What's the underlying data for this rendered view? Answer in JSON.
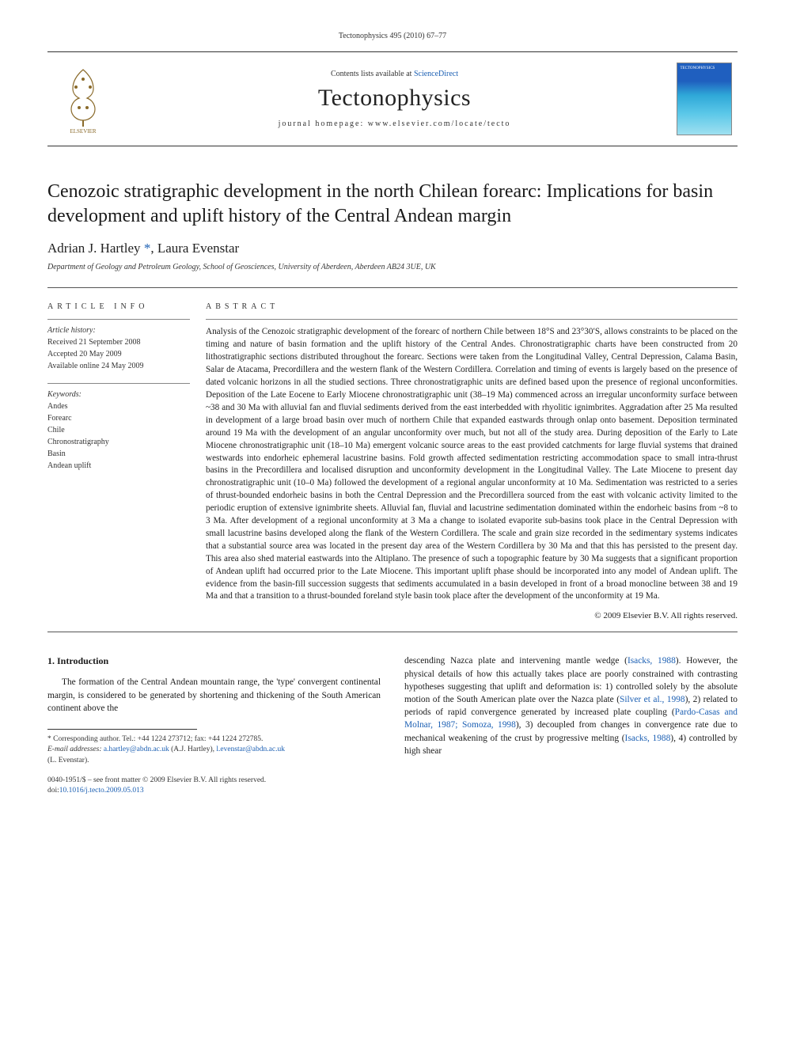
{
  "running_head": "Tectonophysics 495 (2010) 67–77",
  "header": {
    "contents_prefix": "Contents lists available at ",
    "contents_link": "ScienceDirect",
    "journal": "Tectonophysics",
    "homepage": "journal homepage: www.elsevier.com/locate/tecto",
    "cover_label": "TECTONOPHYSICS"
  },
  "article": {
    "title": "Cenozoic stratigraphic development in the north Chilean forearc: Implications for basin development and uplift history of the Central Andean margin",
    "authors_html": "Adrian J. Hartley <span class='corr-star'>*</span>, Laura Evenstar",
    "affiliation": "Department of Geology and Petroleum Geology, School of Geosciences, University of Aberdeen, Aberdeen AB24 3UE, UK"
  },
  "info": {
    "label": "ARTICLE INFO",
    "history_label": "Article history:",
    "received": "Received 21 September 2008",
    "accepted": "Accepted 20 May 2009",
    "online": "Available online 24 May 2009",
    "kw_label": "Keywords:",
    "keywords": [
      "Andes",
      "Forearc",
      "Chile",
      "Chronostratigraphy",
      "Basin",
      "Andean uplift"
    ]
  },
  "abstract": {
    "label": "ABSTRACT",
    "text": "Analysis of the Cenozoic stratigraphic development of the forearc of northern Chile between 18°S and 23°30′S, allows constraints to be placed on the timing and nature of basin formation and the uplift history of the Central Andes. Chronostratigraphic charts have been constructed from 20 lithostratigraphic sections distributed throughout the forearc. Sections were taken from the Longitudinal Valley, Central Depression, Calama Basin, Salar de Atacama, Precordillera and the western flank of the Western Cordillera. Correlation and timing of events is largely based on the presence of dated volcanic horizons in all the studied sections. Three chronostratigraphic units are defined based upon the presence of regional unconformities. Deposition of the Late Eocene to Early Miocene chronostratigraphic unit (38–19 Ma) commenced across an irregular unconformity surface between ~38 and 30 Ma with alluvial fan and fluvial sediments derived from the east interbedded with rhyolitic ignimbrites. Aggradation after 25 Ma resulted in development of a large broad basin over much of northern Chile that expanded eastwards through onlap onto basement. Deposition terminated around 19 Ma with the development of an angular unconformity over much, but not all of the study area. During deposition of the Early to Late Miocene chronostratigraphic unit (18–10 Ma) emergent volcanic source areas to the east provided catchments for large fluvial systems that drained westwards into endorheic ephemeral lacustrine basins. Fold growth affected sedimentation restricting accommodation space to small intra-thrust basins in the Precordillera and localised disruption and unconformity development in the Longitudinal Valley. The Late Miocene to present day chronostratigraphic unit (10–0 Ma) followed the development of a regional angular unconformity at 10 Ma. Sedimentation was restricted to a series of thrust-bounded endorheic basins in both the Central Depression and the Precordillera sourced from the east with volcanic activity limited to the periodic eruption of extensive ignimbrite sheets. Alluvial fan, fluvial and lacustrine sedimentation dominated within the endorheic basins from ~8 to 3 Ma. After development of a regional unconformity at 3 Ma a change to isolated evaporite sub-basins took place in the Central Depression with small lacustrine basins developed along the flank of the Western Cordillera. The scale and grain size recorded in the sedimentary systems indicates that a substantial source area was located in the present day area of the Western Cordillera by 30 Ma and that this has persisted to the present day. This area also shed material eastwards into the Altiplano. The presence of such a topographic feature by 30 Ma suggests that a significant proportion of Andean uplift had occurred prior to the Late Miocene. This important uplift phase should be incorporated into any model of Andean uplift. The evidence from the basin-fill succession suggests that sediments accumulated in a basin developed in front of a broad monocline between 38 and 19 Ma and that a transition to a thrust-bounded foreland style basin took place after the development of the unconformity at 19 Ma.",
    "copyright": "© 2009 Elsevier B.V. All rights reserved."
  },
  "body": {
    "section_head": "1. Introduction",
    "col1_p1": "The formation of the Central Andean mountain range, the 'type' convergent continental margin, is considered to be generated by shortening and thickening of the South American continent above the",
    "col2_p1_a": "descending Nazca plate and intervening mantle wedge (",
    "col2_ref1": "Isacks, 1988",
    "col2_p1_b": "). However, the physical details of how this actually takes place are poorly constrained with contrasting hypotheses suggesting that uplift and deformation is: 1) controlled solely by the absolute motion of the South American plate over the Nazca plate (",
    "col2_ref2": "Silver et al., 1998",
    "col2_p1_c": "), 2) related to periods of rapid convergence generated by increased plate coupling (",
    "col2_ref3": "Pardo-Casas and Molnar, 1987; Somoza, 1998",
    "col2_p1_d": "), 3) decoupled from changes in convergence rate due to mechanical weakening of the crust by progressive melting (",
    "col2_ref4": "Isacks, 1988",
    "col2_p1_e": "), 4) controlled by high shear"
  },
  "footnote": {
    "corr": "* Corresponding author. Tel.: +44 1224 273712; fax: +44 1224 272785.",
    "email_label": "E-mail addresses:",
    "email1": "a.hartley@abdn.ac.uk",
    "email1_name": " (A.J. Hartley), ",
    "email2": "l.evenstar@abdn.ac.uk",
    "email2_name": "(L. Evenstar)."
  },
  "doi": {
    "front": "0040-1951/$ – see front matter © 2009 Elsevier B.V. All rights reserved.",
    "doi_label": "doi:",
    "doi": "10.1016/j.tecto.2009.05.013"
  },
  "colors": {
    "link": "#1b5fb3",
    "text": "#1a1a1a",
    "rule": "#555"
  }
}
